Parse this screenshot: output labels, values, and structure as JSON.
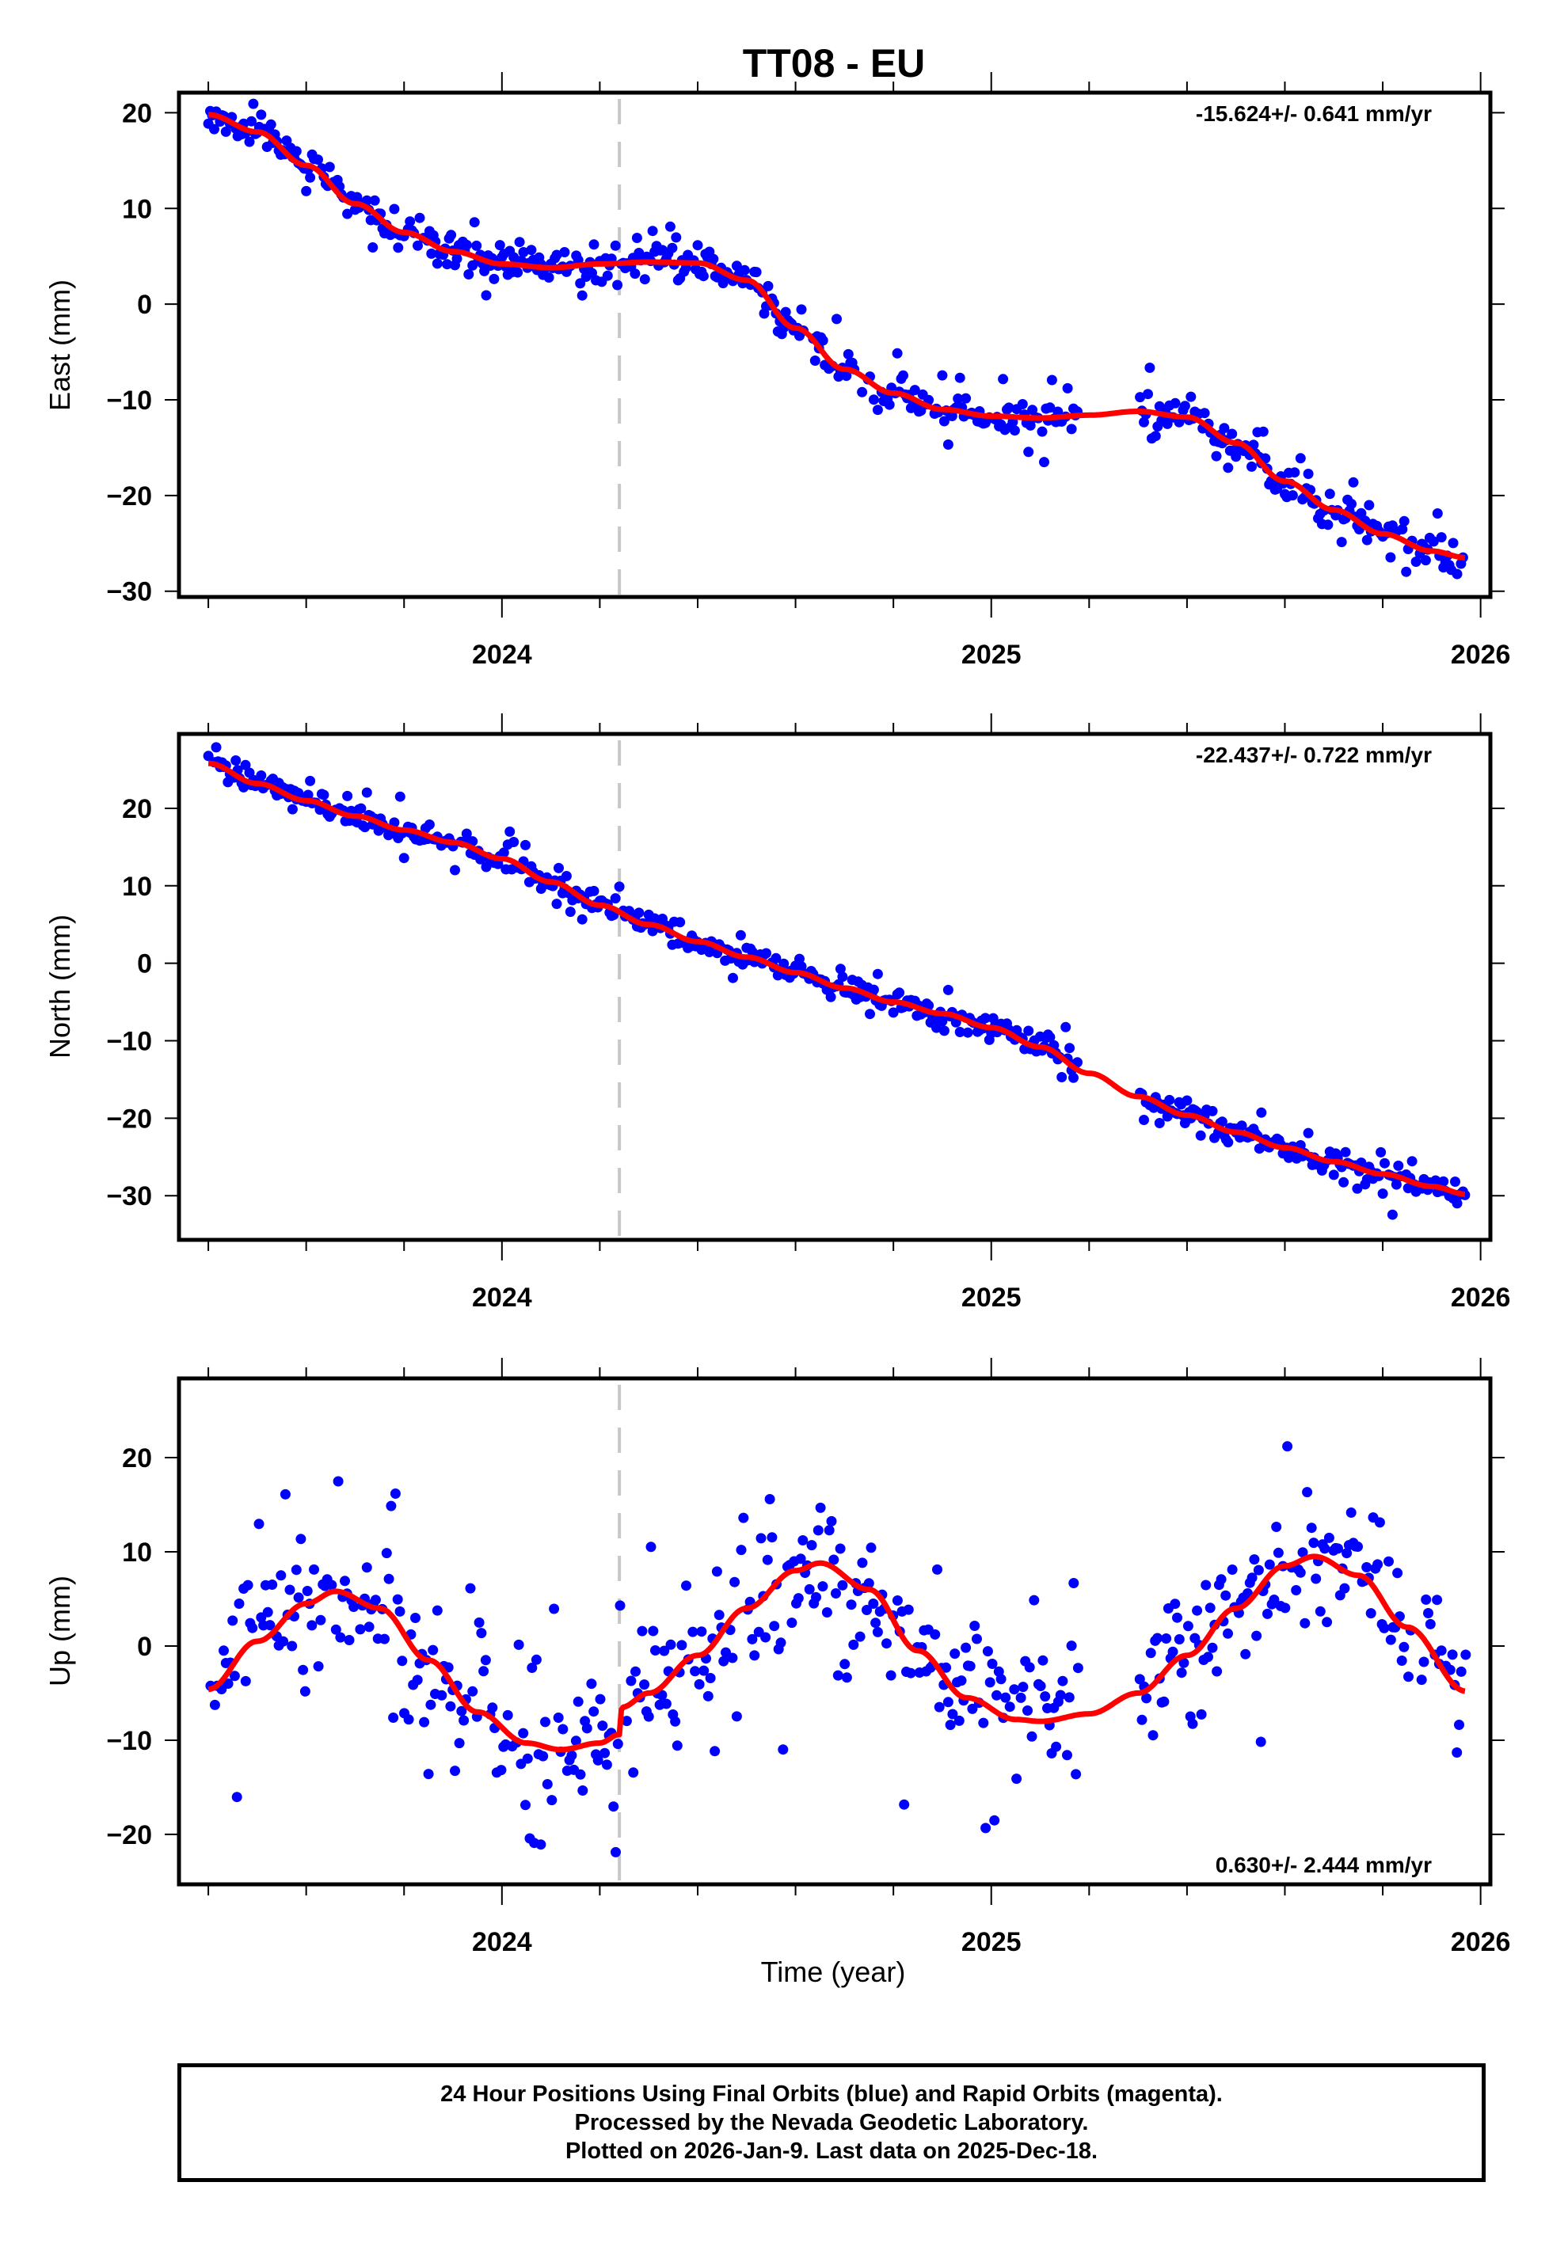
{
  "title": "TT08 - EU",
  "colors": {
    "points": "#0000ff",
    "fit": "#ff0000",
    "marker_line": "#c8c8c8",
    "frame": "#000000"
  },
  "xlabel": "Time (year)",
  "footer": {
    "line1": "24 Hour Positions Using Final Orbits (blue) and Rapid Orbits (magenta).",
    "line2": "Processed by the Nevada Geodetic Laboratory.",
    "line3": "Plotted on 2026-Jan-9. Last data on 2025-Dec-18."
  },
  "chart_data": [
    {
      "type": "scatter",
      "name": "east",
      "title": "TT08 - EU",
      "ylabel": "East (mm)",
      "xlabel": "",
      "rate_label": "-15.624+/- 0.641 mm/yr",
      "rate_position": "top-right",
      "xlim": [
        2023.34,
        2026.02
      ],
      "ylim": [
        -30.6,
        22.1
      ],
      "x_ticks": [
        2024,
        2025,
        2026
      ],
      "x_tick_labels": [
        "2024",
        "2025",
        "2026"
      ],
      "x_minor_step": 0.2,
      "y_ticks": [
        20,
        10,
        0,
        -10,
        -20,
        -30
      ],
      "y_tick_labels": [
        "20",
        "10",
        "0",
        "−10",
        "−20",
        "−30"
      ],
      "grid": false,
      "event_line_x": 2024.24,
      "fit": {
        "x": [
          2023.4,
          2023.5,
          2023.6,
          2023.7,
          2023.8,
          2023.9,
          2024.0,
          2024.1,
          2024.2,
          2024.3,
          2024.4,
          2024.5,
          2024.6,
          2024.7,
          2024.8,
          2024.9,
          2025.0,
          2025.1,
          2025.2,
          2025.3,
          2025.4,
          2025.5,
          2025.6,
          2025.7,
          2025.8,
          2025.9,
          2025.97
        ],
        "y": [
          19.8,
          18.0,
          14.5,
          10.5,
          7.5,
          5.5,
          4.2,
          3.8,
          4.2,
          4.4,
          4.3,
          2.5,
          -2.5,
          -6.8,
          -9.3,
          -11.0,
          -11.7,
          -11.9,
          -11.6,
          -11.2,
          -11.8,
          -14.5,
          -18.5,
          -21.5,
          -24.0,
          -25.8,
          -26.5
        ]
      },
      "points": {
        "x_start": 2023.4,
        "x_end": 2025.97,
        "step": 0.004,
        "gaps": [
          [
            2025.18,
            2025.3
          ]
        ],
        "noise_mm": 1.3
      }
    },
    {
      "type": "scatter",
      "name": "north",
      "ylabel": "North (mm)",
      "xlabel": "",
      "rate_label": "-22.437+/- 0.722 mm/yr",
      "rate_position": "top-right",
      "xlim": [
        2023.34,
        2026.02
      ],
      "ylim": [
        -35.7,
        29.6
      ],
      "x_ticks": [
        2024,
        2025,
        2026
      ],
      "x_tick_labels": [
        "2024",
        "2025",
        "2026"
      ],
      "x_minor_step": 0.2,
      "y_ticks": [
        20,
        10,
        0,
        -10,
        -20,
        -30
      ],
      "y_tick_labels": [
        "20",
        "10",
        "0",
        "−10",
        "−20",
        "−30"
      ],
      "grid": false,
      "event_line_x": 2024.24,
      "fit": {
        "x": [
          2023.4,
          2023.5,
          2023.6,
          2023.7,
          2023.8,
          2023.9,
          2024.0,
          2024.1,
          2024.2,
          2024.3,
          2024.4,
          2024.5,
          2024.6,
          2024.7,
          2024.8,
          2024.9,
          2025.0,
          2025.1,
          2025.2,
          2025.3,
          2025.4,
          2025.5,
          2025.6,
          2025.7,
          2025.8,
          2025.9,
          2025.97
        ],
        "y": [
          25.8,
          23.2,
          21.0,
          19.0,
          17.2,
          15.6,
          13.5,
          10.5,
          7.5,
          5.0,
          2.8,
          0.8,
          -1.2,
          -3.2,
          -5.0,
          -6.5,
          -8.3,
          -10.8,
          -14.2,
          -17.2,
          -19.6,
          -21.8,
          -23.8,
          -25.6,
          -27.2,
          -28.8,
          -29.8
        ]
      },
      "points": {
        "x_start": 2023.4,
        "x_end": 2025.97,
        "step": 0.004,
        "gaps": [
          [
            2025.18,
            2025.3
          ]
        ],
        "noise_mm": 1.2
      }
    },
    {
      "type": "scatter",
      "name": "up",
      "ylabel": "Up (mm)",
      "xlabel": "Time (year)",
      "rate_label": "0.630+/- 2.444 mm/yr",
      "rate_position": "bottom-right",
      "xlim": [
        2023.34,
        2026.02
      ],
      "ylim": [
        -25.3,
        28.4
      ],
      "x_ticks": [
        2024,
        2025,
        2026
      ],
      "x_tick_labels": [
        "2024",
        "2025",
        "2026"
      ],
      "x_minor_step": 0.2,
      "y_ticks": [
        20,
        10,
        0,
        -10,
        -20
      ],
      "y_tick_labels": [
        "20",
        "10",
        "0",
        "−10",
        "−20"
      ],
      "grid": false,
      "event_line_x": 2024.24,
      "fit": {
        "x": [
          2023.4,
          2023.5,
          2023.6,
          2023.66,
          2023.75,
          2023.85,
          2023.95,
          2024.05,
          2024.12,
          2024.2,
          2024.24,
          2024.245,
          2024.3,
          2024.4,
          2024.5,
          2024.6,
          2024.65,
          2024.75,
          2024.85,
          2024.95,
          2025.05,
          2025.1,
          2025.2,
          2025.3,
          2025.4,
          2025.5,
          2025.6,
          2025.66,
          2025.75,
          2025.85,
          2025.97
        ],
        "y": [
          -4.6,
          0.5,
          4.5,
          5.8,
          4.0,
          -1.5,
          -7.0,
          -10.3,
          -11.0,
          -10.3,
          -9.4,
          -6.5,
          -5.0,
          -1.0,
          4.0,
          8.0,
          8.8,
          6.0,
          -0.5,
          -5.5,
          -7.8,
          -8.0,
          -7.2,
          -5.0,
          -1.0,
          4.0,
          8.5,
          9.5,
          7.5,
          2.0,
          -4.8
        ]
      },
      "points": {
        "x_start": 2023.4,
        "x_end": 2025.97,
        "step": 0.0045,
        "gaps": [
          [
            2025.18,
            2025.3
          ]
        ],
        "noise_mm": 5.0
      }
    }
  ]
}
